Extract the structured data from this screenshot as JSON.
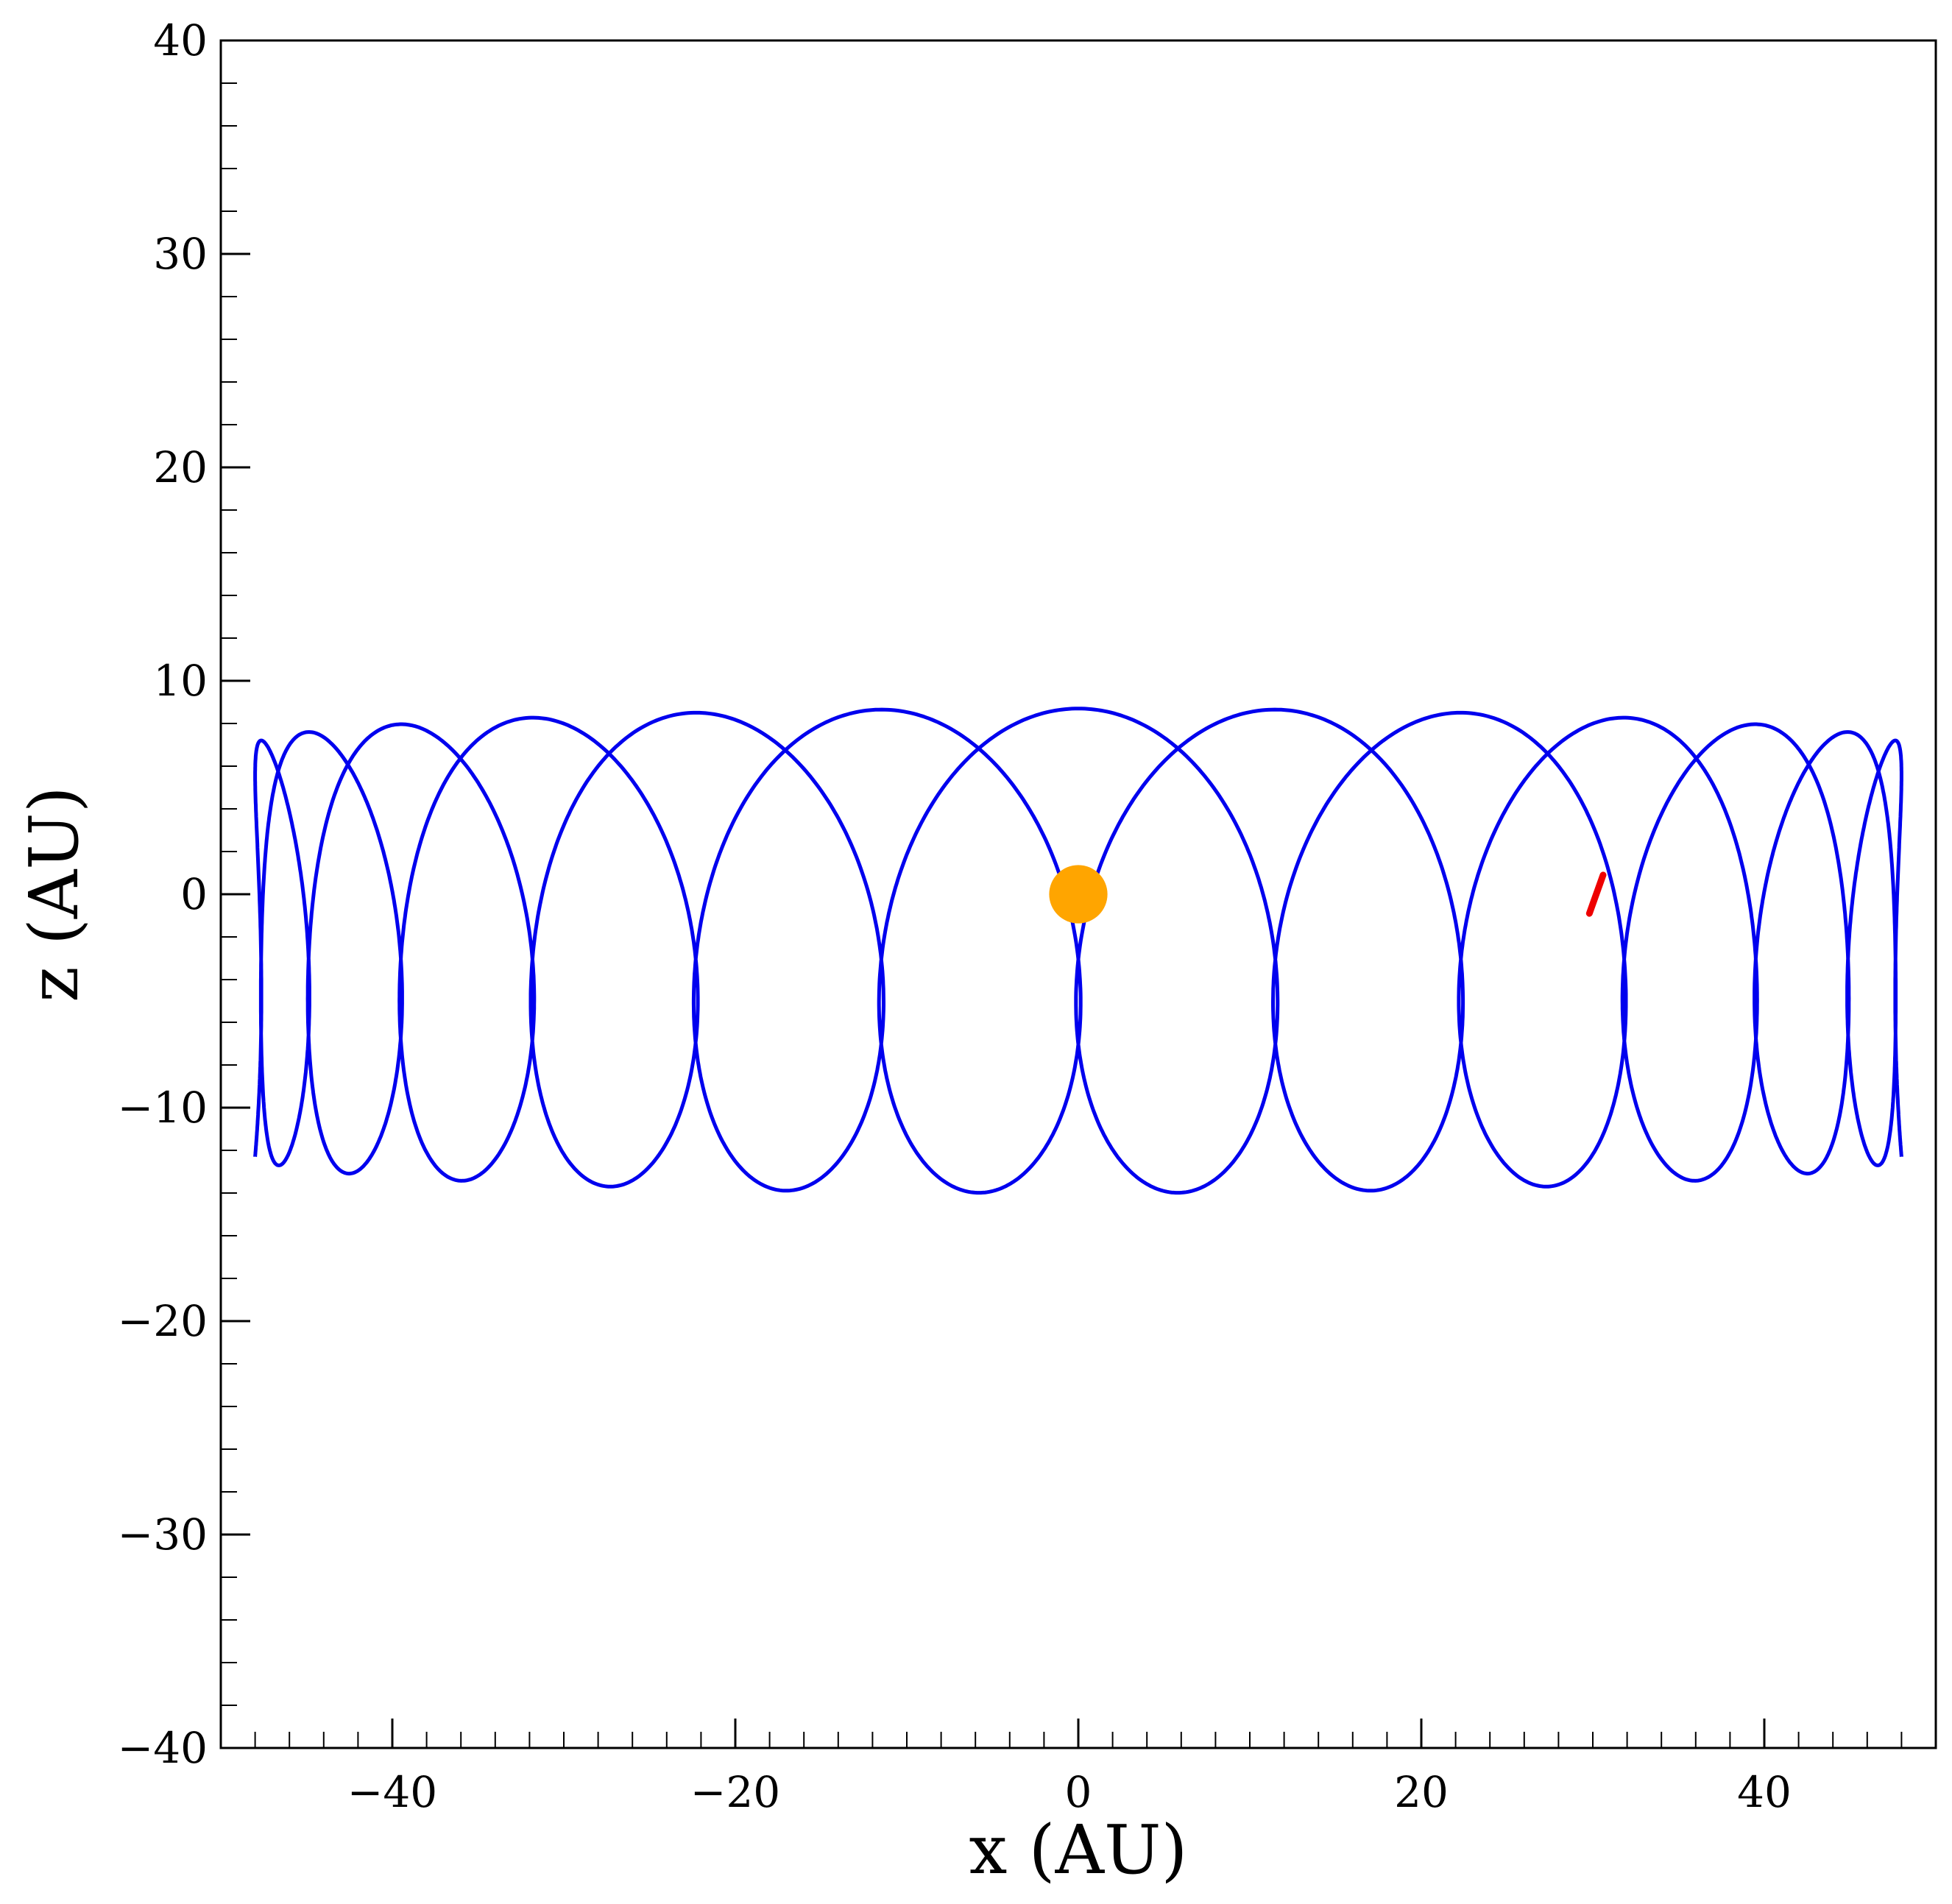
{
  "chart_data": {
    "type": "line",
    "title": "",
    "xlabel": "x (AU)",
    "ylabel": "z (AU)",
    "xlim": [
      -50,
      50
    ],
    "ylim": [
      -40,
      40
    ],
    "xticks": [
      {
        "value": -40,
        "label": "−40"
      },
      {
        "value": -20,
        "label": "−20"
      },
      {
        "value": 0,
        "label": "0"
      },
      {
        "value": 20,
        "label": "20"
      },
      {
        "value": 40,
        "label": "40"
      }
    ],
    "yticks": [
      {
        "value": 40,
        "label": "40"
      },
      {
        "value": 30,
        "label": "30"
      },
      {
        "value": 20,
        "label": "20"
      },
      {
        "value": 10,
        "label": "10"
      },
      {
        "value": 0,
        "label": "0"
      },
      {
        "value": -10,
        "label": "−10"
      },
      {
        "value": -20,
        "label": "−20"
      },
      {
        "value": -30,
        "label": "−30"
      },
      {
        "value": -40,
        "label": "−40"
      }
    ],
    "minor_tick_step": 2,
    "grid": false,
    "colors": {
      "orbit": "#0000ee",
      "star": "#ffa500",
      "body": "#ee0000"
    },
    "series": [
      {
        "kind": "orbit-trace",
        "x_range": [
          -48,
          48
        ],
        "z_range": [
          -14,
          8.7
        ],
        "loops": 26,
        "precession_revolutions": 1
      },
      {
        "kind": "central-star",
        "x": 0,
        "z": 0,
        "radius": 1.7
      },
      {
        "kind": "body-segment",
        "x": [
          29.8,
          30.6
        ],
        "z": [
          -0.9,
          0.9
        ]
      }
    ]
  }
}
